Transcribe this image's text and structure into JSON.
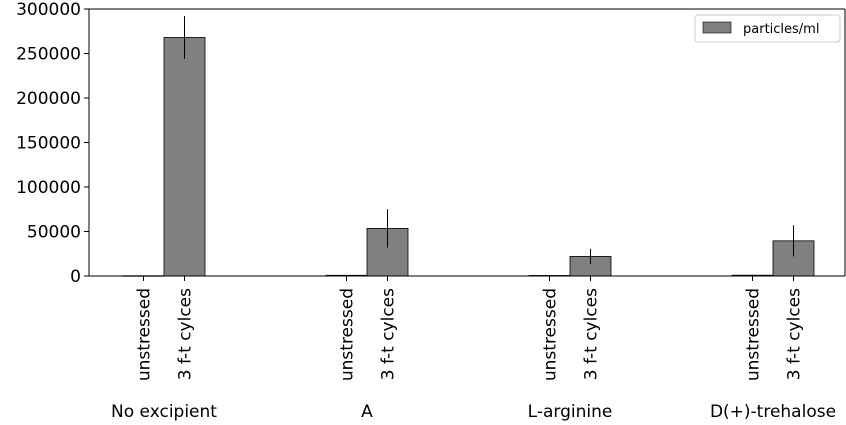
{
  "chart_data": {
    "type": "bar",
    "title": "",
    "xlabel": "",
    "ylabel": "",
    "ylim": [
      0,
      300000
    ],
    "yticks": [
      0,
      50000,
      100000,
      150000,
      200000,
      250000,
      300000
    ],
    "grid": false,
    "legend_position": "top-right",
    "groups": [
      {
        "label": "No excipient",
        "bars": [
          {
            "label": "unstressed",
            "value": 300,
            "err": 200
          },
          {
            "label": "3 f-t cylces",
            "value": 268000,
            "err": 24000
          }
        ]
      },
      {
        "label": "A",
        "bars": [
          {
            "label": "unstressed",
            "value": 800,
            "err": 400
          },
          {
            "label": "3 f-t cylces",
            "value": 53500,
            "err": 21500
          }
        ]
      },
      {
        "label": "L-arginine",
        "bars": [
          {
            "label": "unstressed",
            "value": 600,
            "err": 300
          },
          {
            "label": "3 f-t cylces",
            "value": 22000,
            "err": 8500
          }
        ]
      },
      {
        "label": "D(+)-trehalose",
        "bars": [
          {
            "label": "unstressed",
            "value": 900,
            "err": 500
          },
          {
            "label": "3 f-t cylces",
            "value": 39500,
            "err": 17500
          }
        ]
      }
    ],
    "series": [
      {
        "name": "particles/ml",
        "color": "#808080"
      }
    ]
  }
}
